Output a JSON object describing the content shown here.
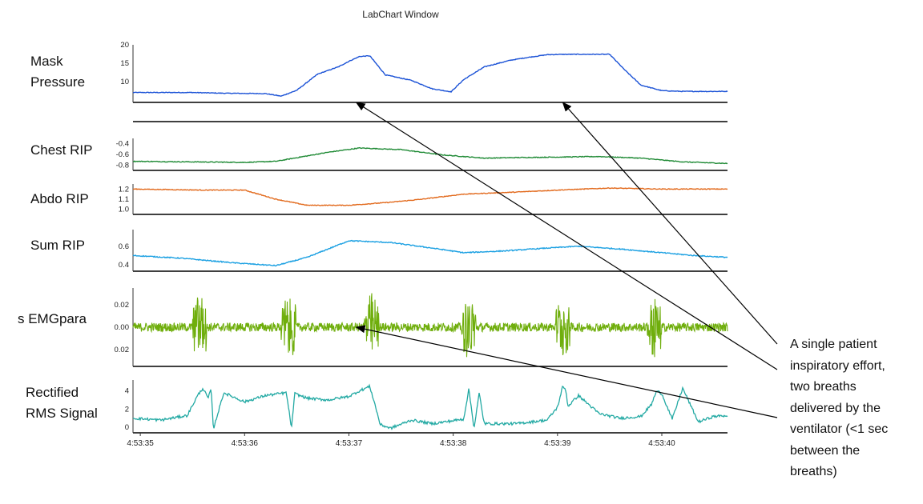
{
  "window": {
    "title": "LabChart Window"
  },
  "channels": [
    {
      "label_lines": [
        "Mask",
        "Pressure"
      ]
    },
    {
      "label_lines": [
        "Chest RIP"
      ]
    },
    {
      "label_lines": [
        "Abdo RIP"
      ]
    },
    {
      "label_lines": [
        "Sum RIP"
      ]
    },
    {
      "label_lines": [
        "s EMGpara"
      ]
    },
    {
      "label_lines": [
        "Rectified",
        "RMS Signal"
      ]
    }
  ],
  "annotation": {
    "lines": [
      "A single patient",
      "inspiratory effort,",
      "two breaths",
      "delivered by the",
      "ventilator (<1 sec",
      "between the",
      "breaths)"
    ]
  },
  "colors": {
    "mask_pressure": "#1b52d6",
    "chest_rip": "#1f8a35",
    "abdo_rip": "#e26a1d",
    "sum_rip": "#1ba0e2",
    "emg": "#6fae0c",
    "rms": "#22a9a3",
    "axis": "#000000"
  },
  "chart_data": {
    "type": "line",
    "x_label": "",
    "x_ticks": [
      "4:53:35",
      "4:53:36",
      "4:53:37",
      "4:53:38",
      "4:53:39",
      "4:53:40"
    ],
    "x_tick_seconds": [
      35,
      36,
      37,
      38,
      39,
      40
    ],
    "xlim": [
      34.93,
      40.63
    ],
    "panels": [
      {
        "name": "Mask Pressure",
        "y_ticks": [
          "20",
          "15",
          "10"
        ],
        "y_tick_values": [
          20,
          15,
          10
        ],
        "ylim": [
          4.3,
          20
        ],
        "series": {
          "x": [
            34.93,
            35.5,
            35.8,
            36.2,
            36.35,
            36.5,
            36.7,
            36.9,
            37.0,
            37.1,
            37.2,
            37.35,
            37.6,
            37.8,
            37.98,
            38.1,
            38.3,
            38.55,
            38.7,
            38.9,
            39.05,
            39.12,
            39.25,
            39.35,
            39.5,
            39.65,
            39.8,
            40.0,
            40.2,
            40.63
          ],
          "y": [
            7.0,
            7.0,
            6.8,
            6.7,
            6.0,
            7.6,
            12.0,
            14.0,
            15.5,
            16.8,
            17.0,
            11.8,
            10.3,
            8.0,
            7.2,
            10.5,
            14.0,
            15.8,
            16.5,
            17.3,
            17.4,
            17.4,
            17.4,
            17.4,
            17.4,
            13.0,
            9.0,
            7.5,
            7.3,
            7.3
          ]
        }
      },
      {
        "name": "Chest RIP",
        "y_ticks": [
          "-0.4",
          "-0.6",
          "-0.8"
        ],
        "y_tick_values": [
          -0.4,
          -0.6,
          -0.8
        ],
        "ylim": [
          -0.9,
          -0.3
        ],
        "series": {
          "x": [
            34.93,
            35.5,
            36.0,
            36.3,
            36.8,
            37.1,
            37.5,
            37.9,
            38.3,
            38.6,
            39.0,
            39.4,
            39.8,
            40.2,
            40.63
          ],
          "y": [
            -0.73,
            -0.74,
            -0.75,
            -0.73,
            -0.56,
            -0.48,
            -0.51,
            -0.61,
            -0.67,
            -0.66,
            -0.65,
            -0.64,
            -0.67,
            -0.74,
            -0.77
          ]
        }
      },
      {
        "name": "Abdo RIP",
        "y_ticks": [
          "1.2",
          "1.1",
          "1.0"
        ],
        "y_tick_values": [
          1.2,
          1.1,
          1.0
        ],
        "ylim": [
          0.95,
          1.25
        ],
        "series": {
          "x": [
            34.93,
            35.6,
            36.0,
            36.3,
            36.6,
            37.0,
            37.4,
            37.7,
            38.1,
            38.6,
            39.0,
            39.5,
            40.0,
            40.63
          ],
          "y": [
            1.2,
            1.19,
            1.19,
            1.1,
            1.04,
            1.04,
            1.07,
            1.1,
            1.15,
            1.17,
            1.19,
            1.21,
            1.2,
            1.2
          ]
        }
      },
      {
        "name": "Sum RIP",
        "y_ticks": [
          "0.6",
          "0.4"
        ],
        "y_tick_values": [
          0.6,
          0.4
        ],
        "ylim": [
          0.33,
          0.78
        ],
        "series": {
          "x": [
            34.93,
            35.4,
            35.9,
            36.3,
            36.6,
            37.0,
            37.4,
            37.8,
            38.1,
            38.5,
            38.9,
            39.2,
            39.6,
            40.0,
            40.3,
            40.63
          ],
          "y": [
            0.5,
            0.47,
            0.42,
            0.39,
            0.48,
            0.66,
            0.64,
            0.58,
            0.53,
            0.55,
            0.58,
            0.6,
            0.57,
            0.53,
            0.5,
            0.48
          ]
        }
      },
      {
        "name": "s EMGpara",
        "y_ticks": [
          "0.02",
          "0.00",
          "0.02"
        ],
        "y_tick_values": [
          0.02,
          0.0,
          -0.02
        ],
        "ylim": [
          -0.035,
          0.035
        ],
        "burst_times": [
          35.57,
          36.42,
          37.22,
          38.15,
          39.05,
          39.93
        ],
        "baseline_amplitude": 0.004,
        "burst_amplitude": 0.033
      },
      {
        "name": "Rectified RMS Signal",
        "y_ticks": [
          "4",
          "2",
          "0"
        ],
        "y_tick_values": [
          4,
          2,
          0
        ],
        "ylim": [
          -0.6,
          5.2
        ],
        "series": {
          "x": [
            34.93,
            35.2,
            35.45,
            35.55,
            35.6,
            35.65,
            35.68,
            35.7,
            35.8,
            36.0,
            36.2,
            36.4,
            36.45,
            36.48,
            36.6,
            36.8,
            37.0,
            37.1,
            37.2,
            37.25,
            37.3,
            37.4,
            37.6,
            37.8,
            38.1,
            38.15,
            38.2,
            38.25,
            38.28,
            38.3,
            38.6,
            38.9,
            39.0,
            39.05,
            39.08,
            39.1,
            39.2,
            39.4,
            39.6,
            39.8,
            39.9,
            39.95,
            40.0,
            40.1,
            40.2,
            40.35,
            40.5,
            40.63
          ],
          "y": [
            1.0,
            0.8,
            1.3,
            3.5,
            4.3,
            3.2,
            4.2,
            -0.2,
            3.8,
            2.8,
            3.5,
            3.8,
            -0.1,
            3.7,
            3.2,
            3.0,
            3.4,
            4.0,
            4.5,
            2.5,
            0.3,
            -0.1,
            0.8,
            0.4,
            0.9,
            4.2,
            -0.1,
            3.8,
            1.5,
            0.4,
            0.4,
            0.8,
            2.2,
            4.5,
            4.1,
            2.3,
            3.5,
            1.5,
            1.0,
            1.2,
            2.5,
            4.0,
            3.7,
            0.9,
            4.3,
            0.6,
            1.2,
            1.3
          ]
        }
      }
    ],
    "arrows": [
      {
        "label": "effort-to-first-breath",
        "target_panel": "Mask Pressure",
        "target_x": 37.07,
        "target_y": 4.3
      },
      {
        "label": "effort-to-second-breath",
        "target_panel": "Mask Pressure",
        "target_x": 39.05,
        "target_y": 4.3
      },
      {
        "label": "effort-to-emg-burst",
        "target_panel": "s EMGpara",
        "target_x": 37.07,
        "target_y": 0.0
      }
    ]
  }
}
